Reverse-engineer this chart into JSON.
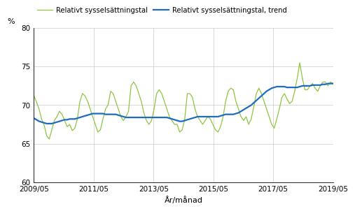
{
  "title": "",
  "ylabel": "%",
  "xlabel": "År/månad",
  "ylim": [
    60,
    80
  ],
  "yticks": [
    60,
    65,
    70,
    75,
    80
  ],
  "legend_line1": "Relativt sysselsättningstal",
  "legend_line2": "Relativt sysselsättningstal, trend",
  "color_line1": "#8dc63f",
  "color_line2": "#1f6cbf",
  "xtick_labels": [
    "2009/05",
    "2011/05",
    "2013/05",
    "2015/05",
    "2017/05",
    "2019/05"
  ],
  "raw_values": [
    71.2,
    70.4,
    69.5,
    68.2,
    67.4,
    66.0,
    65.6,
    66.8,
    68.0,
    68.5,
    69.2,
    68.8,
    68.0,
    67.2,
    67.5,
    66.7,
    67.0,
    68.2,
    70.5,
    71.5,
    71.2,
    70.5,
    69.5,
    68.5,
    67.5,
    66.5,
    66.8,
    68.2,
    69.5,
    70.0,
    71.8,
    71.5,
    70.5,
    69.5,
    68.5,
    68.0,
    68.5,
    69.2,
    72.5,
    73.0,
    72.5,
    71.5,
    70.5,
    69.0,
    68.0,
    67.5,
    68.0,
    69.5,
    71.5,
    72.0,
    71.5,
    70.5,
    69.5,
    68.5,
    68.0,
    67.5,
    67.5,
    66.5,
    66.8,
    68.2,
    71.5,
    71.5,
    71.0,
    69.5,
    68.5,
    68.0,
    67.5,
    68.0,
    68.5,
    68.2,
    67.5,
    66.8,
    66.5,
    67.2,
    68.5,
    70.5,
    71.8,
    72.2,
    72.0,
    70.5,
    69.5,
    68.5,
    68.0,
    68.5,
    67.5,
    68.2,
    69.8,
    71.5,
    72.2,
    71.5,
    70.5,
    69.5,
    68.5,
    67.5,
    67.0,
    68.2,
    69.5,
    71.0,
    71.5,
    70.8,
    70.2,
    70.5,
    71.8,
    73.5,
    75.5,
    73.5,
    72.0,
    72.0,
    72.5,
    72.8,
    72.2,
    71.8,
    72.5,
    73.0,
    73.0,
    72.5,
    73.0,
    72.8
  ],
  "trend_values": [
    68.3,
    68.1,
    67.9,
    67.8,
    67.7,
    67.6,
    67.6,
    67.6,
    67.7,
    67.8,
    67.9,
    68.0,
    68.1,
    68.1,
    68.2,
    68.2,
    68.2,
    68.3,
    68.4,
    68.5,
    68.6,
    68.7,
    68.8,
    68.9,
    68.9,
    68.9,
    68.9,
    68.9,
    68.8,
    68.8,
    68.8,
    68.8,
    68.8,
    68.7,
    68.6,
    68.5,
    68.4,
    68.4,
    68.4,
    68.4,
    68.4,
    68.4,
    68.4,
    68.4,
    68.4,
    68.4,
    68.4,
    68.4,
    68.4,
    68.4,
    68.4,
    68.4,
    68.4,
    68.3,
    68.2,
    68.1,
    68.0,
    67.9,
    67.9,
    68.0,
    68.1,
    68.2,
    68.3,
    68.4,
    68.5,
    68.5,
    68.5,
    68.5,
    68.5,
    68.5,
    68.5,
    68.5,
    68.5,
    68.6,
    68.7,
    68.8,
    68.8,
    68.8,
    68.8,
    68.9,
    69.0,
    69.2,
    69.4,
    69.6,
    69.8,
    70.0,
    70.3,
    70.6,
    70.9,
    71.2,
    71.5,
    71.8,
    72.0,
    72.2,
    72.3,
    72.4,
    72.4,
    72.4,
    72.4,
    72.3,
    72.3,
    72.3,
    72.3,
    72.3,
    72.4,
    72.5,
    72.5,
    72.5,
    72.5,
    72.6,
    72.6,
    72.6,
    72.6,
    72.7,
    72.7,
    72.8,
    72.8,
    72.8
  ]
}
